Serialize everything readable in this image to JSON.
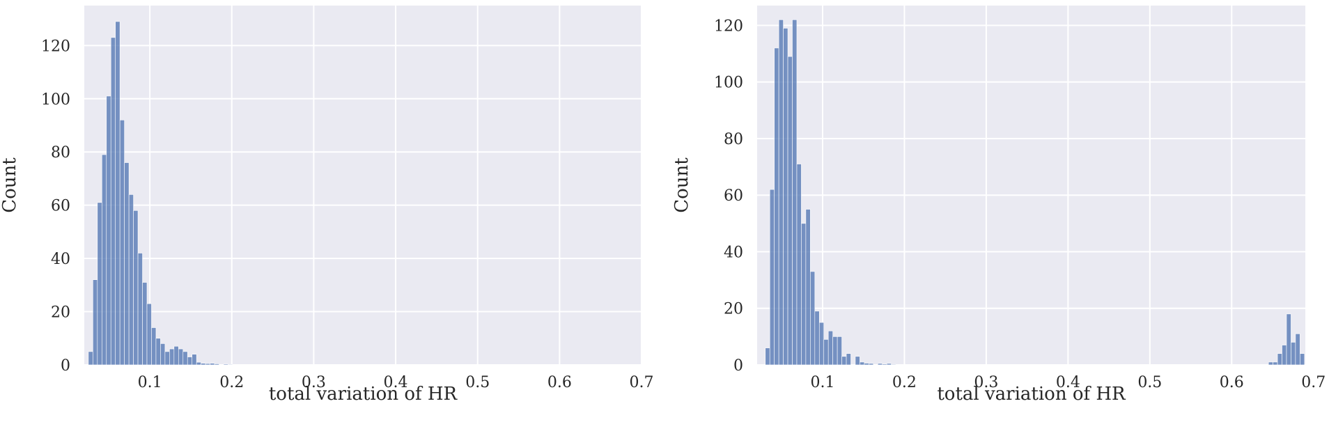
{
  "chart_data": [
    {
      "type": "bar",
      "title": "",
      "xlabel": "total variation of HR",
      "ylabel": "Count",
      "xlim": [
        0.02,
        0.7
      ],
      "ylim": [
        0,
        135
      ],
      "x_ticks": [
        0.1,
        0.2,
        0.3,
        0.4,
        0.5,
        0.6,
        0.7
      ],
      "x_tick_labels": [
        "0.1",
        "0.2",
        "0.3",
        "0.4",
        "0.5",
        "0.6",
        "0.7"
      ],
      "y_ticks": [
        0,
        20,
        40,
        60,
        80,
        100,
        120
      ],
      "y_tick_labels": [
        "0",
        "20",
        "40",
        "60",
        "80",
        "100",
        "120"
      ],
      "grid": true,
      "color": "#4C72B0",
      "bin_width": 0.0055,
      "bin_start": 0.025,
      "values": [
        5,
        32,
        61,
        79,
        101,
        123,
        129,
        92,
        76,
        64,
        58,
        42,
        31,
        23,
        14,
        10,
        8,
        5,
        6,
        7,
        6,
        5,
        3,
        4,
        1,
        0.6,
        0.5,
        0.6,
        0.4,
        0,
        0.3,
        0.2
      ]
    },
    {
      "type": "bar",
      "title": "",
      "xlabel": "total variation of HR",
      "ylabel": "Count",
      "xlim": [
        0.02,
        0.69
      ],
      "ylim": [
        0,
        127
      ],
      "x_ticks": [
        0.1,
        0.2,
        0.3,
        0.4,
        0.5,
        0.6,
        0.7
      ],
      "x_tick_labels": [
        "0.1",
        "0.2",
        "0.3",
        "0.4",
        "0.5",
        "0.6",
        "0.7"
      ],
      "y_ticks": [
        0,
        20,
        40,
        60,
        80,
        100,
        120
      ],
      "y_tick_labels": [
        "0",
        "20",
        "40",
        "60",
        "80",
        "100",
        "120"
      ],
      "grid": true,
      "color": "#4C72B0",
      "bin_width": 0.0055,
      "bin_start": 0.03,
      "values": [
        6,
        62,
        112,
        122,
        119,
        109,
        122,
        71,
        50,
        55,
        33,
        19,
        15,
        9,
        12,
        10,
        10,
        3,
        4,
        0,
        3,
        1,
        0.6,
        0.5,
        0,
        0.5,
        0.3,
        0.5,
        0.2
      ],
      "tail_bin_start": 0.645,
      "tail_values": [
        1,
        1,
        4,
        7,
        18,
        8,
        11,
        4
      ]
    }
  ]
}
